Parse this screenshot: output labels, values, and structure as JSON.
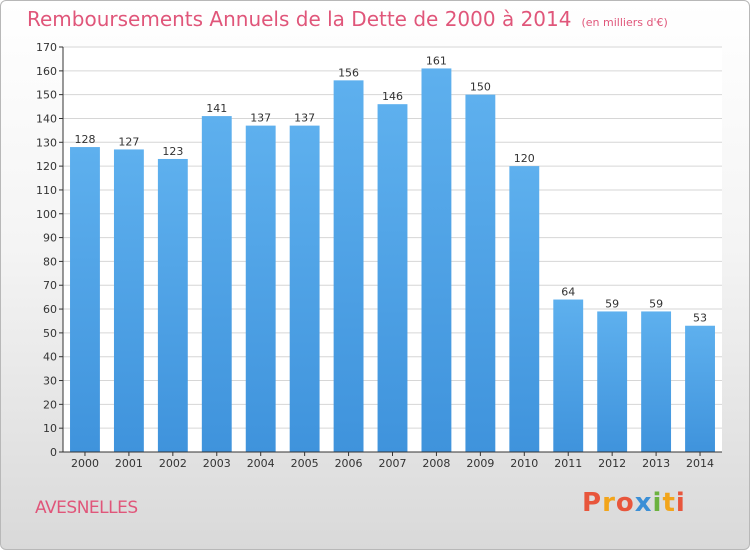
{
  "chart_data": {
    "type": "bar",
    "title": "Remboursements Annuels de la Dette de 2000 à 2014",
    "unit": "(en milliers d'€)",
    "categories": [
      "2000",
      "2001",
      "2002",
      "2003",
      "2004",
      "2005",
      "2006",
      "2007",
      "2008",
      "2009",
      "2010",
      "2011",
      "2012",
      "2013",
      "2014"
    ],
    "values": [
      128,
      127,
      123,
      141,
      137,
      137,
      156,
      146,
      161,
      150,
      120,
      64,
      59,
      59,
      53
    ],
    "ylim": [
      0,
      170
    ],
    "yticks": [
      0,
      10,
      20,
      30,
      40,
      50,
      60,
      70,
      80,
      90,
      100,
      110,
      120,
      130,
      140,
      150,
      160,
      170
    ],
    "grid": true,
    "bar_color": "#3f93dc",
    "label_color": "#333333"
  },
  "footer": {
    "commune": "AVESNELLES",
    "logo_text": "Proxiti",
    "logo_colors": [
      "#e8563c",
      "#f2a51b",
      "#e8563c",
      "#3b8fd6",
      "#6cb23e",
      "#f2a51b",
      "#e8563c"
    ]
  },
  "colors": {
    "title": "#e0567a",
    "grid": "#d6d6d6",
    "axis": "#333333"
  }
}
